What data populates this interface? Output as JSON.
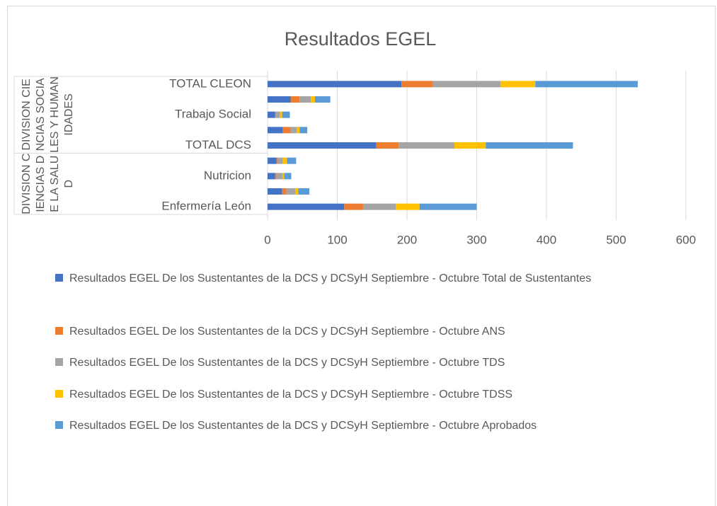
{
  "chart_data": {
    "type": "bar",
    "orientation": "horizontal",
    "stacked": true,
    "title": "Resultados EGEL",
    "categories": [
      "Enfermería León",
      null,
      "Nutricion",
      null,
      "TOTAL DCS",
      null,
      "Trabajo Social",
      null,
      "TOTAL CLEON"
    ],
    "group_labels": [
      "DIVISION CIENCIAS DE LA SALUD",
      "DIVISION CIENCIAS SOCIALES Y HUMANIDADES"
    ],
    "series": [
      {
        "name": "Resultados EGEL De los Sustentantes de la DCS y DCSyH Septiembre - Octubre Total de Sustentantes",
        "color": "#4472c4",
        "values": [
          110,
          21,
          11,
          13,
          156,
          22,
          11,
          33,
          192
        ]
      },
      {
        "name": "Resultados EGEL De los Sustentantes de la DCS y DCSyH Septiembre - Octubre ANS",
        "color": "#ed7d31",
        "values": [
          27,
          6,
          2,
          2,
          32,
          11,
          1,
          13,
          45
        ]
      },
      {
        "name": "Resultados EGEL De los Sustentantes de la DCS y DCSyH Septiembre - Octubre TDS",
        "color": "#a5a5a5",
        "values": [
          47,
          13,
          9,
          7,
          80,
          9,
          6,
          16,
          97
        ]
      },
      {
        "name": "Resultados EGEL De los Sustentantes de la DCS y DCSyH Septiembre - Octubre TDSS",
        "color": "#ffc000",
        "values": [
          34,
          4,
          2,
          6,
          45,
          4,
          3,
          6,
          50
        ]
      },
      {
        "name": "Resultados EGEL De los Sustentantes de la DCS y DCSyH Septiembre - Octubre Aprobados",
        "color": "#5b9bd5",
        "values": [
          82,
          16,
          10,
          13,
          125,
          11,
          11,
          22,
          147
        ]
      }
    ],
    "xlim": [
      0,
      600
    ],
    "xticks": [
      0,
      100,
      200,
      300,
      400,
      500,
      600
    ],
    "grid": true,
    "legend": "bottom"
  }
}
